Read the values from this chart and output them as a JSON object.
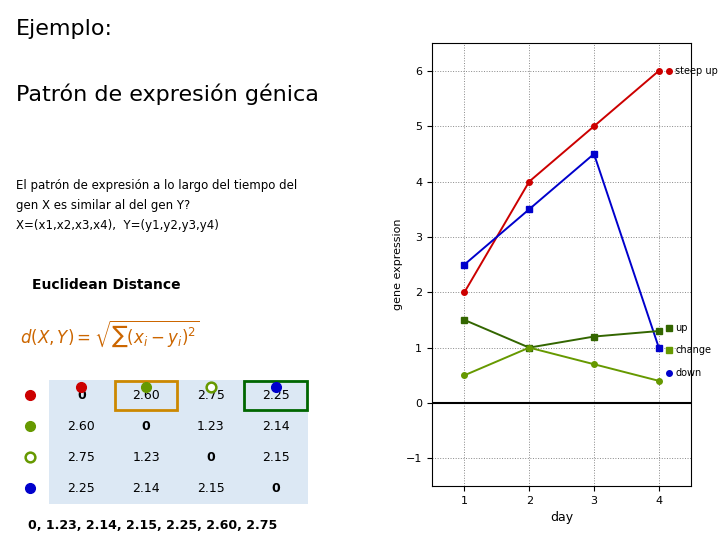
{
  "title_line1": "Ejemplo:",
  "title_line2": "Patrón de expresión génica",
  "body_text": "El patrón de expresión a lo largo del tiempo del\ngen X es similar al del gen Y?\nX=(x1,x2,x3,x4),  Y=(y1,y2,y3,y4)",
  "euclidean_title": "Euclidean Distance",
  "bottom_text": "0, 1.23, 2.14, 2.15, 2.25, 2.60, 2.75",
  "days": [
    1,
    2,
    3,
    4
  ],
  "steepup": [
    2.0,
    4.0,
    5.0,
    6.0
  ],
  "up": [
    2.5,
    3.5,
    4.5,
    1.0
  ],
  "change_up": [
    1.5,
    1.0,
    1.2,
    1.3
  ],
  "change_down": [
    0.5,
    1.0,
    0.7,
    0.4
  ],
  "ylim": [
    -1.5,
    6.5
  ],
  "yticks": [
    -1,
    0,
    1,
    2,
    3,
    4,
    5,
    6
  ],
  "color_red": "#cc0000",
  "color_blue": "#0000cc",
  "color_green_dark": "#336600",
  "color_green_light": "#669900",
  "steepup_label": "steep up",
  "up_label": "up",
  "change_label": "change",
  "down_label": "down",
  "table_values": [
    [
      "0",
      "2.60",
      "2.75",
      "2.25"
    ],
    [
      "2.60",
      "0",
      "1.23",
      "2.14"
    ],
    [
      "2.75",
      "1.23",
      "0",
      "2.15"
    ],
    [
      "2.25",
      "2.14",
      "2.15",
      "0"
    ]
  ],
  "row_dot_colors": [
    "#cc0000",
    "#669900",
    "none",
    "#0000cc"
  ],
  "col_dot_colors": [
    "#cc0000",
    "#669900",
    "none",
    "#0000cc"
  ]
}
